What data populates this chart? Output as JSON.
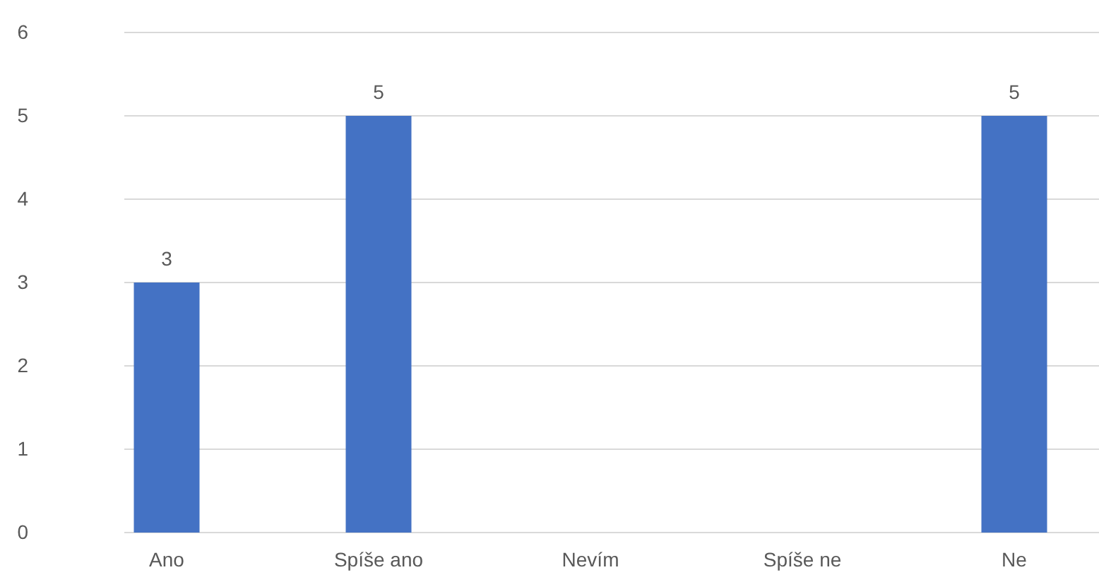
{
  "chart_data": {
    "type": "bar",
    "categories": [
      "Ano",
      "Spíše ano",
      "Nevím",
      "Spíše ne",
      "Ne"
    ],
    "values": [
      3,
      5,
      0,
      0,
      5
    ],
    "color": "#4472c4",
    "value_labels": [
      "3",
      "5",
      null,
      null,
      "5"
    ],
    "ylim": [
      0,
      6
    ],
    "yticks": [
      0,
      1,
      2,
      3,
      4,
      5,
      6
    ],
    "grid": "y"
  }
}
